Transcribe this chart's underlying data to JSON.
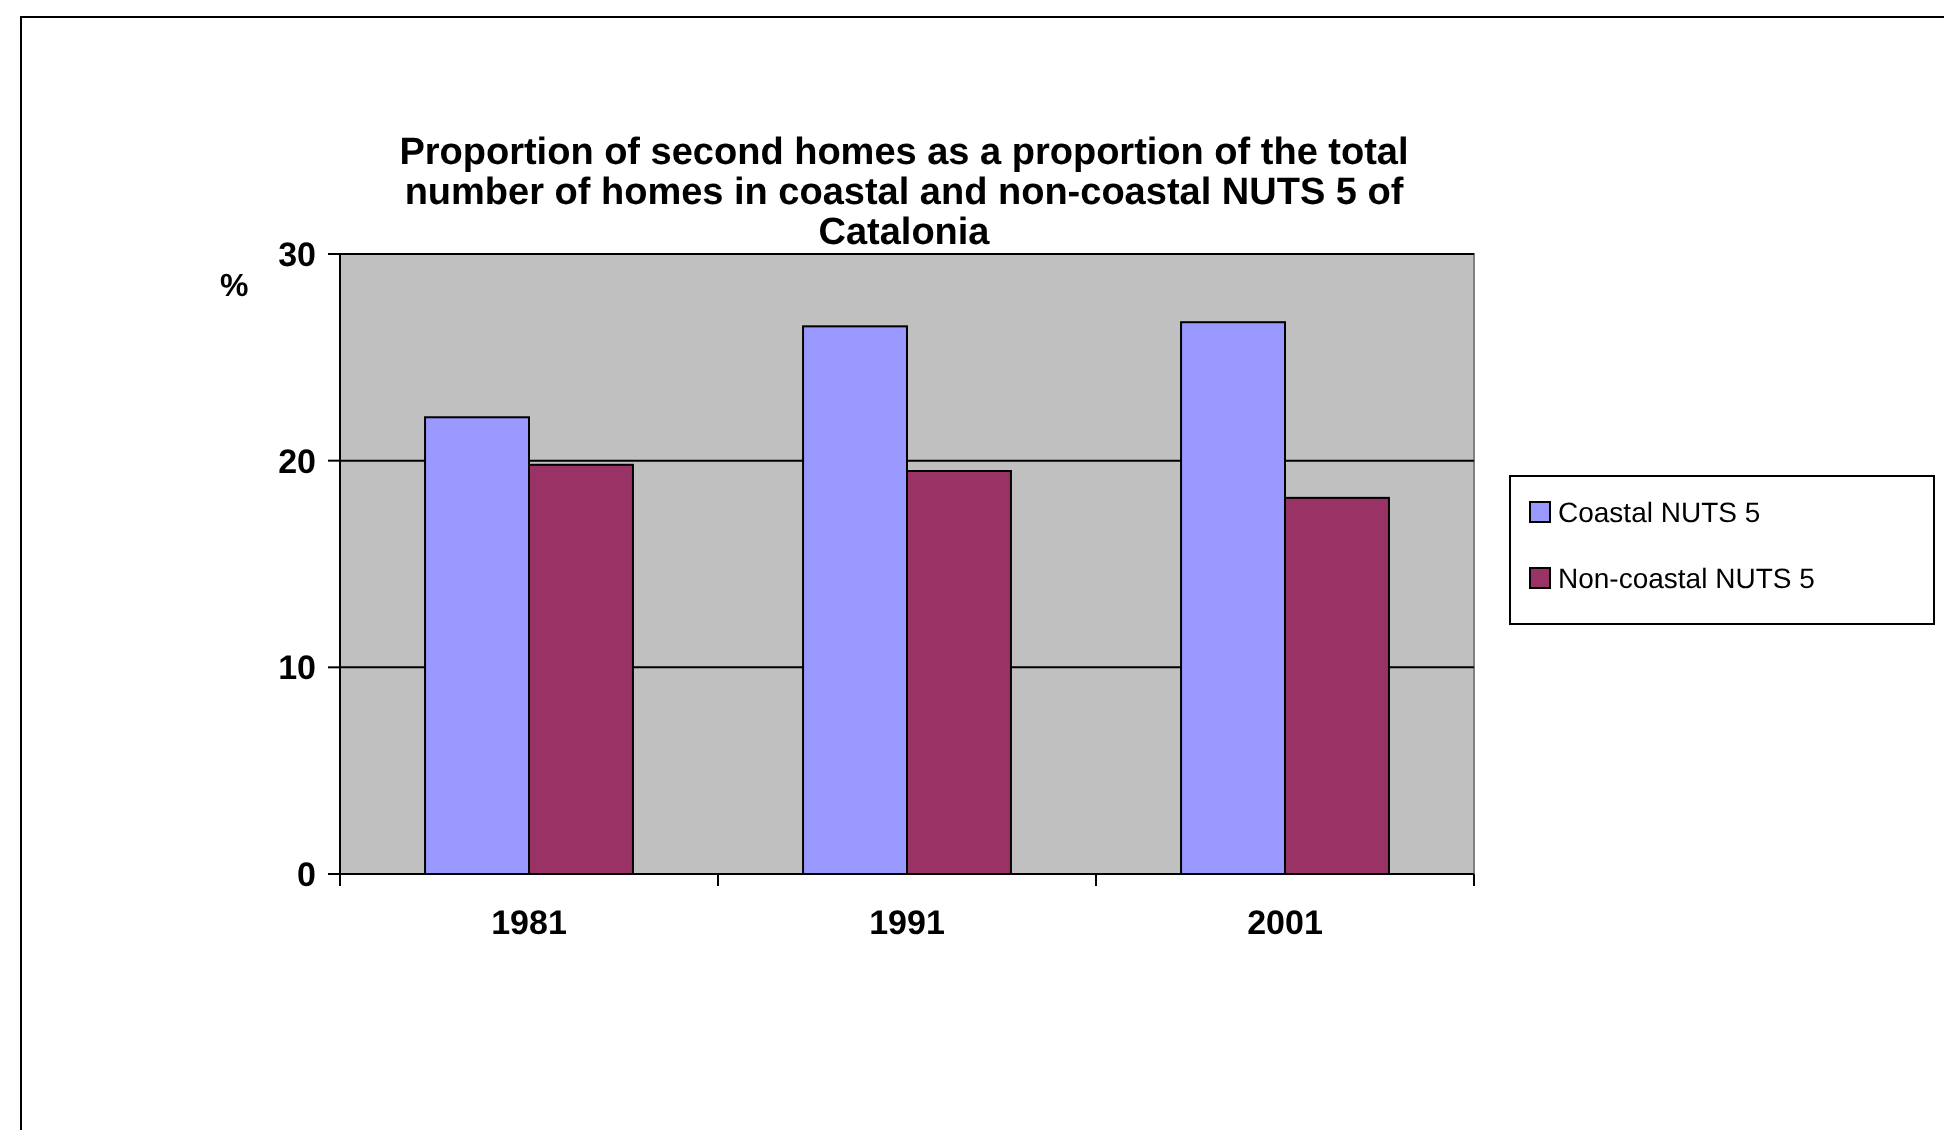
{
  "chart_data": {
    "type": "bar",
    "title": "Proportion of second homes as a proportion of the total number of homes in coastal and non-coastal NUTS 5 of Catalonia",
    "ylabel": "%",
    "categories": [
      "1981",
      "1991",
      "2001"
    ],
    "series": [
      {
        "name": "Coastal NUTS 5",
        "color": "#9999ff",
        "values": [
          22.1,
          26.5,
          26.7
        ]
      },
      {
        "name": "Non-coastal NUTS 5",
        "color": "#993366",
        "values": [
          19.8,
          19.5,
          18.2
        ]
      }
    ],
    "ylim": [
      0,
      30
    ],
    "yticks": [
      0,
      10,
      20,
      30
    ],
    "grid": "y",
    "legend": "right"
  }
}
